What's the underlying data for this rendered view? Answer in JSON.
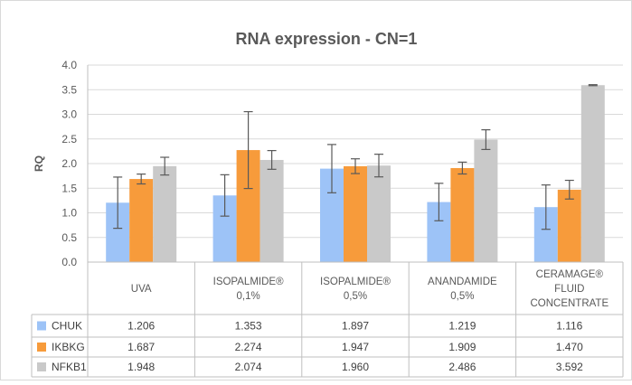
{
  "chart_data": {
    "type": "bar",
    "title": "RNA expression - CN=1",
    "ylabel": "RQ",
    "xlabel": "",
    "ylim": [
      0,
      4.0
    ],
    "yticks": [
      "0.0",
      "0.5",
      "1.0",
      "1.5",
      "2.0",
      "2.5",
      "3.0",
      "3.5",
      "4.0"
    ],
    "grid": true,
    "legend": "data-table-left",
    "categories": [
      [
        "UVA"
      ],
      [
        "ISOPALMIDE®",
        "0,1%"
      ],
      [
        "ISOPALMIDE®",
        "0,5%"
      ],
      [
        "ANANDAMIDE",
        "0,5%"
      ],
      [
        "CERAMAGE®",
        "FLUID",
        "CONCENTRATE"
      ]
    ],
    "series": [
      {
        "name": "CHUK",
        "color": "#9DC3F7",
        "values": [
          1.206,
          1.353,
          1.897,
          1.219,
          1.116
        ],
        "labels": [
          "1.206",
          "1.353",
          "1.897",
          "1.219",
          "1.116"
        ],
        "error": [
          0.52,
          0.42,
          0.49,
          0.38,
          0.45
        ]
      },
      {
        "name": "IKBKG",
        "color": "#F79B3B",
        "values": [
          1.687,
          2.274,
          1.947,
          1.909,
          1.47
        ],
        "labels": [
          "1.687",
          "2.274",
          "1.947",
          "1.909",
          "1.470"
        ],
        "error": [
          0.1,
          0.78,
          0.15,
          0.12,
          0.19
        ]
      },
      {
        "name": "NFKB1",
        "color": "#C9C9C9",
        "values": [
          1.948,
          2.074,
          1.96,
          2.486,
          3.592
        ],
        "labels": [
          "1.948",
          "2.074",
          "1.960",
          "2.486",
          "3.592"
        ],
        "error": [
          0.18,
          0.19,
          0.23,
          0.2,
          0.01
        ]
      }
    ]
  }
}
